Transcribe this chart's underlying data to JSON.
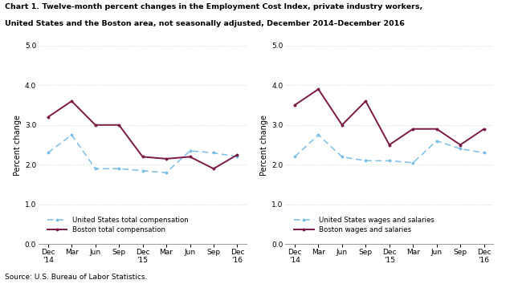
{
  "title_line1": "Chart 1. Twelve-month percent changes in the Employment Cost Index, private industry workers,",
  "title_line2": "United States and the Boston area, not seasonally adjusted, December 2014–December 2016",
  "source": "Source: U.S. Bureau of Labor Statistics.",
  "ylabel": "Percent change",
  "xlabels": [
    "Dec\n'14",
    "Mar",
    "Jun",
    "Sep",
    "Dec\n'15",
    "Mar",
    "Jun",
    "Sep",
    "Dec\n'16"
  ],
  "left_us_label": "United States total compensation",
  "left_boston_label": "Boston total compensation",
  "right_us_label": "United States wages and salaries",
  "right_boston_label": "Boston wages and salaries",
  "left_us_values": [
    2.3,
    2.75,
    1.9,
    1.9,
    1.85,
    1.8,
    2.35,
    2.3,
    2.2
  ],
  "left_boston_values": [
    3.2,
    3.6,
    3.0,
    3.0,
    2.2,
    2.15,
    2.2,
    1.9,
    2.25
  ],
  "right_us_values": [
    2.2,
    2.75,
    2.2,
    2.1,
    2.1,
    2.05,
    2.6,
    2.4,
    2.3
  ],
  "right_boston_values": [
    3.5,
    3.9,
    3.0,
    3.6,
    2.5,
    2.9,
    2.9,
    2.5,
    2.9
  ],
  "us_color": "#7abfea",
  "boston_color": "#7b1a45",
  "hline_color": "#c8e6c8",
  "hline_y": [
    1.0,
    2.0,
    3.0,
    4.0,
    5.0
  ],
  "ylim": [
    0.0,
    5.0
  ],
  "yticks": [
    0.0,
    1.0,
    2.0,
    3.0,
    4.0,
    5.0
  ],
  "ytick_labels": [
    "0.0",
    "1.0",
    "2.0",
    "3.0",
    "4.0",
    "5.0"
  ]
}
